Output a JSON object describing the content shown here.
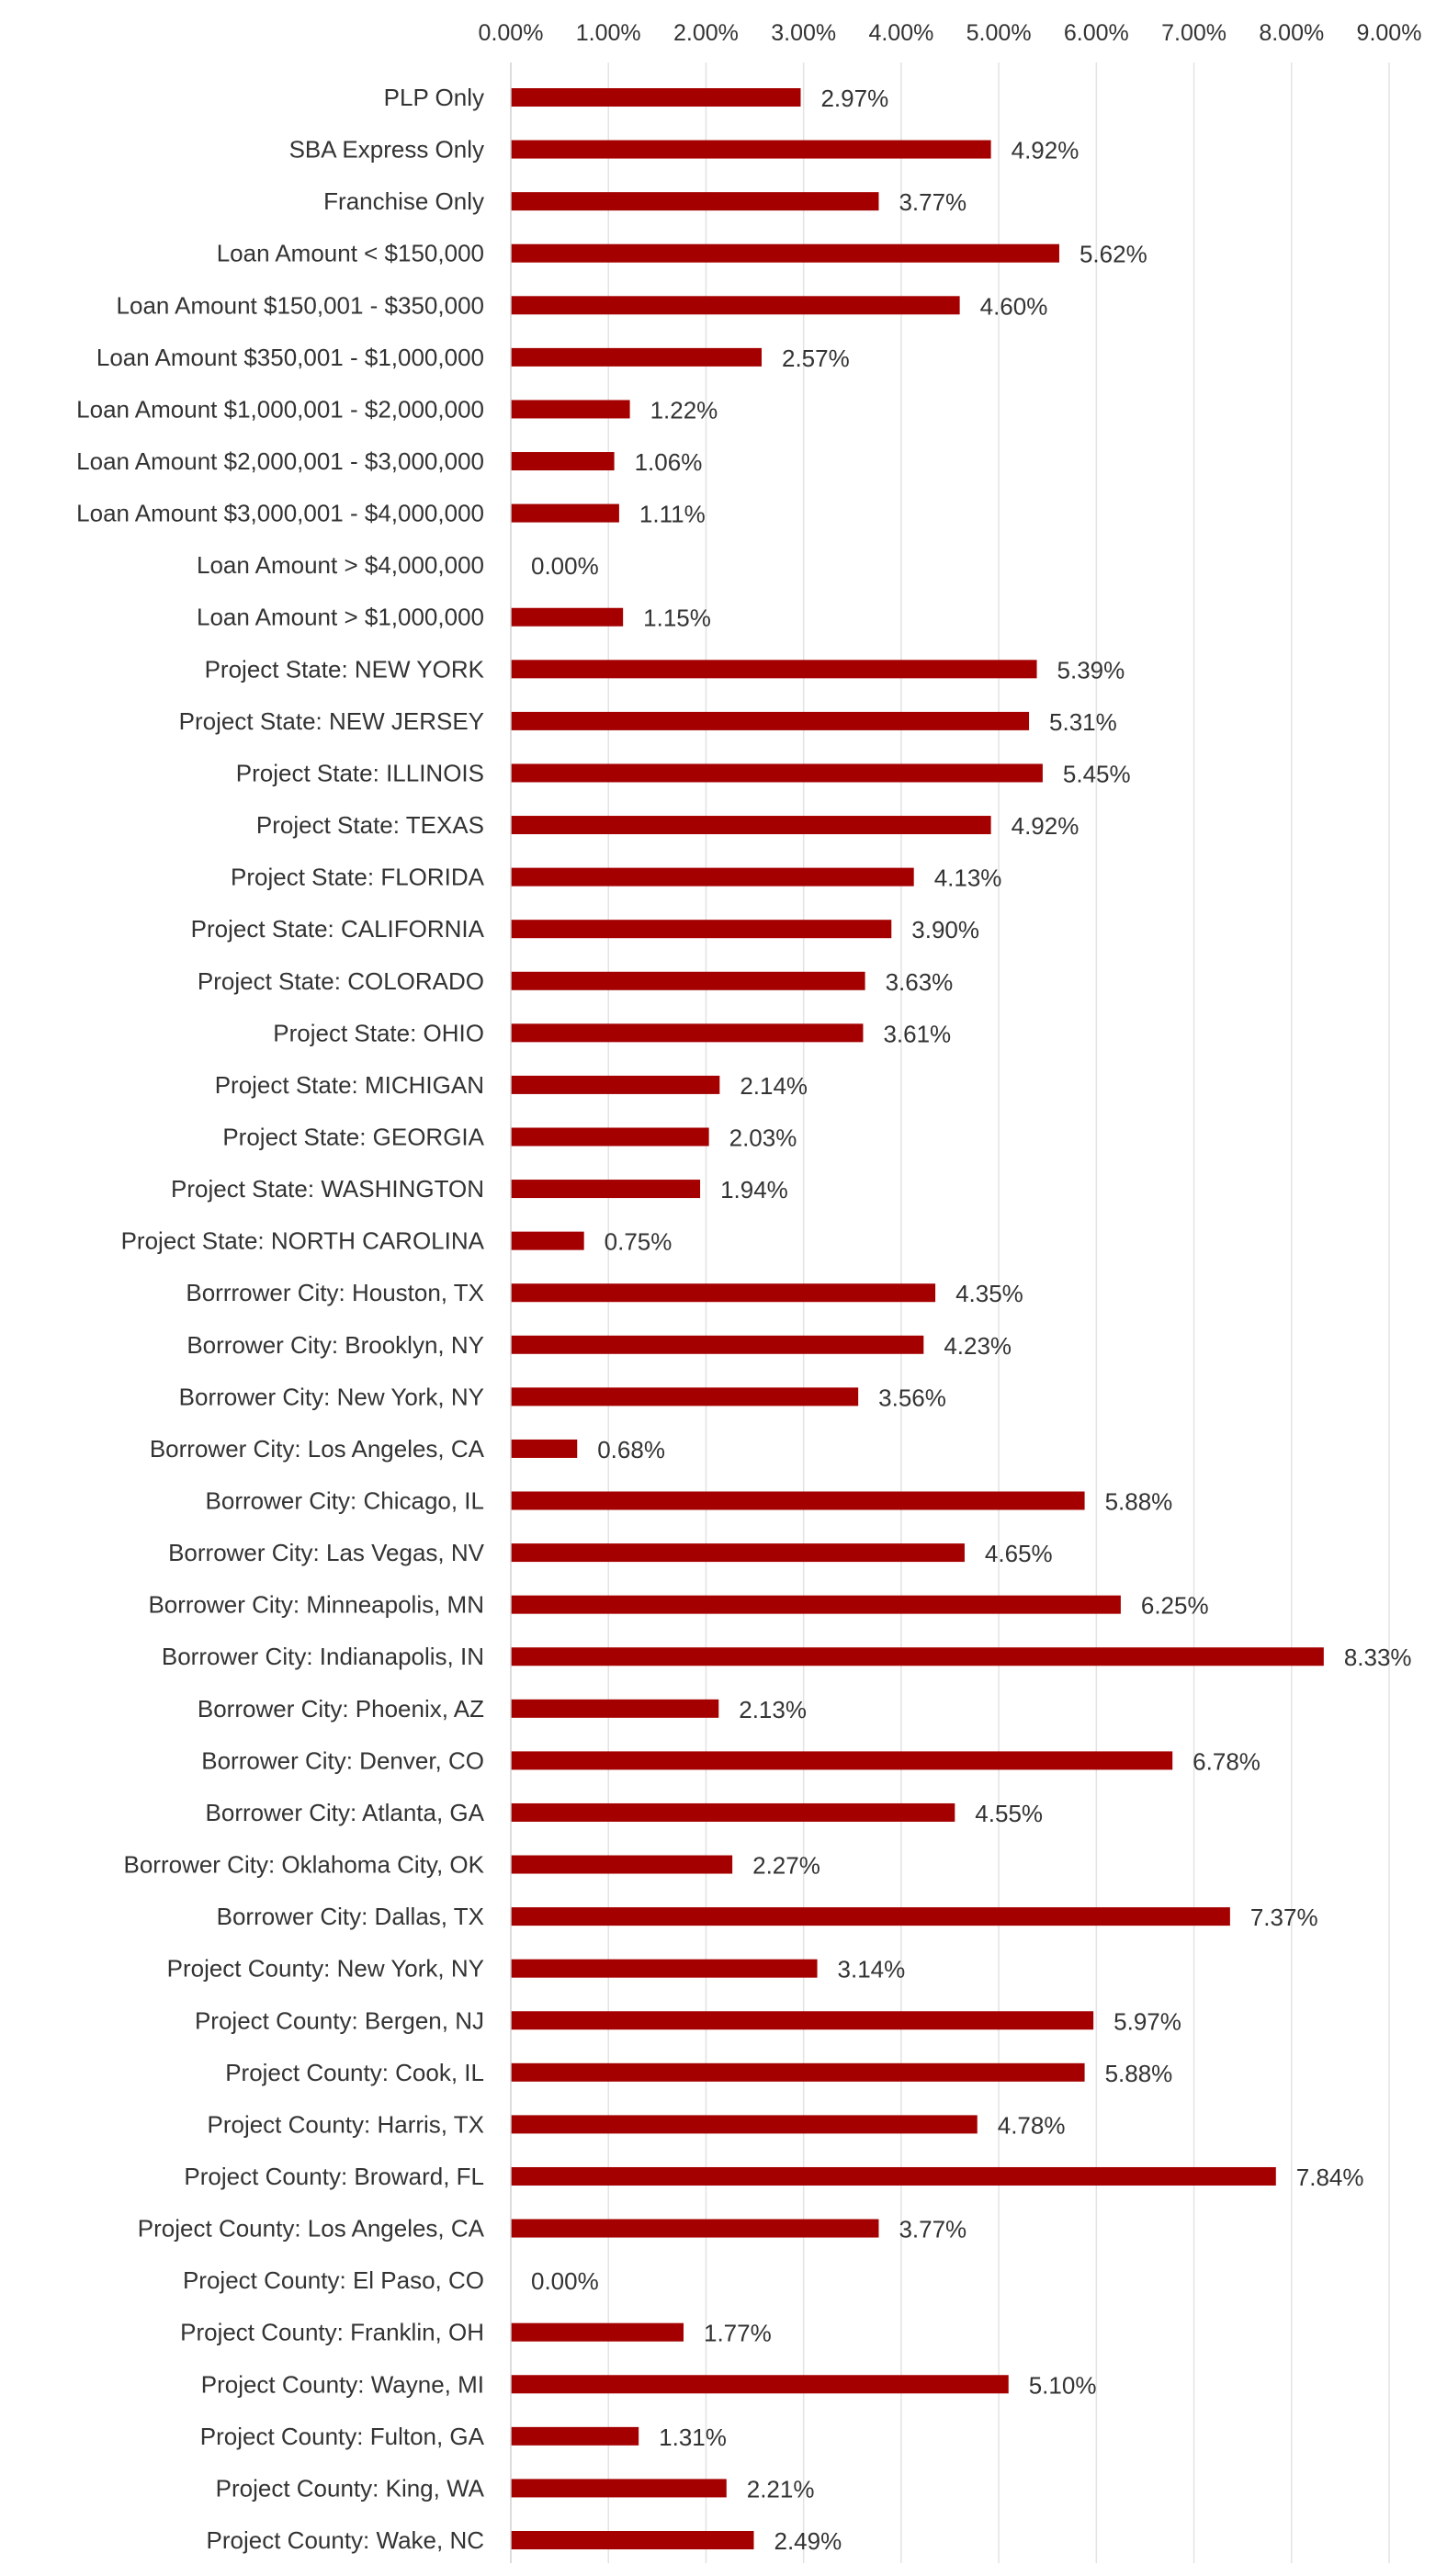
{
  "chart_data": {
    "type": "bar",
    "orientation": "horizontal",
    "title": "",
    "xlabel": "",
    "ylabel": "",
    "xlim": [
      0,
      9
    ],
    "x_ticks": [
      "0.00%",
      "1.00%",
      "2.00%",
      "3.00%",
      "4.00%",
      "5.00%",
      "6.00%",
      "7.00%",
      "8.00%",
      "9.00%"
    ],
    "x_axis_position": "top",
    "grid": true,
    "legend": "none",
    "bar_color": "#a50000",
    "categories": [
      "PLP Only",
      "SBA Express Only",
      "Franchise Only",
      "Loan Amount < $150,000",
      "Loan Amount $150,001 - $350,000",
      "Loan Amount $350,001 - $1,000,000",
      "Loan Amount $1,000,001 - $2,000,000",
      "Loan Amount $2,000,001 - $3,000,000",
      "Loan Amount $3,000,001 - $4,000,000",
      "Loan Amount > $4,000,000",
      "Loan Amount > $1,000,000",
      "Project State: NEW YORK",
      "Project State: NEW JERSEY",
      "Project State: ILLINOIS",
      "Project State: TEXAS",
      "Project State: FLORIDA",
      "Project State: CALIFORNIA",
      "Project State: COLORADO",
      "Project State: OHIO",
      "Project State: MICHIGAN",
      "Project State: GEORGIA",
      "Project State: WASHINGTON",
      "Project State: NORTH CAROLINA",
      "Borrrower City: Houston, TX",
      "Borrower City: Brooklyn, NY",
      "Borrower City: New York, NY",
      "Borrower City: Los Angeles, CA",
      "Borrower City: Chicago, IL",
      "Borrower City: Las Vegas, NV",
      "Borrower City: Minneapolis, MN",
      "Borrower City: Indianapolis, IN",
      "Borrower City: Phoenix, AZ",
      "Borrower City: Denver, CO",
      "Borrower City: Atlanta, GA",
      "Borrower City: Oklahoma City, OK",
      "Borrower City: Dallas, TX",
      "Project County: New York, NY",
      "Project County: Bergen, NJ",
      "Project County: Cook, IL",
      "Project County: Harris, TX",
      "Project County: Broward, FL",
      "Project County: Los Angeles, CA",
      "Project County: El Paso, CO",
      "Project County: Franklin, OH",
      "Project County: Wayne, MI",
      "Project County: Fulton, GA",
      "Project County: King, WA",
      "Project County: Wake, NC"
    ],
    "values": [
      2.97,
      4.92,
      3.77,
      5.62,
      4.6,
      2.57,
      1.22,
      1.06,
      1.11,
      0.0,
      1.15,
      5.39,
      5.31,
      5.45,
      4.92,
      4.13,
      3.9,
      3.63,
      3.61,
      2.14,
      2.03,
      1.94,
      0.75,
      4.35,
      4.23,
      3.56,
      0.68,
      5.88,
      4.65,
      6.25,
      8.33,
      2.13,
      6.78,
      4.55,
      2.27,
      7.37,
      3.14,
      5.97,
      5.88,
      4.78,
      7.84,
      3.77,
      0.0,
      1.77,
      5.1,
      1.31,
      2.21,
      2.49
    ],
    "data_labels": [
      "2.97%",
      "4.92%",
      "3.77%",
      "5.62%",
      "4.60%",
      "2.57%",
      "1.22%",
      "1.06%",
      "1.11%",
      "0.00%",
      "1.15%",
      "5.39%",
      "5.31%",
      "5.45%",
      "4.92%",
      "4.13%",
      "3.90%",
      "3.63%",
      "3.61%",
      "2.14%",
      "2.03%",
      "1.94%",
      "0.75%",
      "4.35%",
      "4.23%",
      "3.56%",
      "0.68%",
      "5.88%",
      "4.65%",
      "6.25%",
      "8.33%",
      "2.13%",
      "6.78%",
      "4.55%",
      "2.27%",
      "7.37%",
      "3.14%",
      "5.97%",
      "5.88%",
      "4.78%",
      "7.84%",
      "3.77%",
      "0.00%",
      "1.77%",
      "5.10%",
      "1.31%",
      "2.21%",
      "2.49%"
    ]
  }
}
